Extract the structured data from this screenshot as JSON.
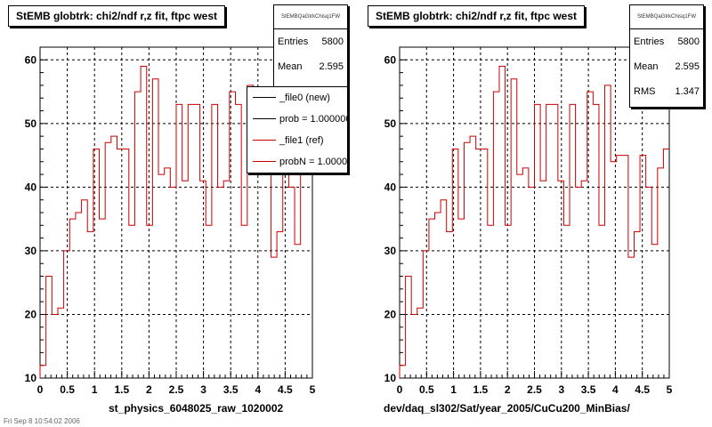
{
  "colors": {
    "hist_line": "#cc0000",
    "axis": "#000000",
    "grid": "#000000",
    "background": "#ffffff"
  },
  "footer": "Fri Sep 8 10:54:02 2006",
  "legend": {
    "items": [
      {
        "label": "_file0 (new)",
        "color": "#000000"
      },
      {
        "label": "prob = 1.000000",
        "color": "#000000"
      },
      {
        "label": "_file1 (ref)",
        "color": "#cc0000"
      },
      {
        "label": "probN = 1.000000",
        "color": "#cc0000"
      }
    ]
  },
  "chart_data": [
    {
      "type": "line",
      "style": "step-histogram",
      "title": "StEMB globtrk: chi2/ndf r,z fit, ftpc west",
      "xlabel": "st_physics_6048025_raw_1020002",
      "ylabel": "",
      "xlim": [
        0,
        5
      ],
      "ylim": [
        10,
        62
      ],
      "grid": true,
      "legend_placement": "top-right",
      "x_ticks": [
        "0",
        "0.5",
        "1",
        "1.5",
        "2",
        "2.5",
        "3",
        "3.5",
        "4",
        "4.5",
        "5"
      ],
      "y_ticks": [
        "10",
        "20",
        "30",
        "40",
        "50",
        "60"
      ],
      "stats": {
        "name": "StEMBQaGtrkChisq1FW",
        "entries_label": "Entries",
        "entries": "5800",
        "mean_label": "Mean",
        "mean": "2.595"
      },
      "series": [
        {
          "name": "_file1 (ref)",
          "color": "#cc0000",
          "values": [
            12,
            26,
            20,
            21,
            30,
            35,
            36,
            38,
            33,
            46,
            35,
            47,
            48,
            46,
            46,
            34,
            55,
            59,
            34,
            57,
            42,
            43,
            40,
            53,
            41,
            53,
            53,
            41,
            34,
            53,
            40,
            41,
            55,
            53,
            34,
            56,
            44,
            45,
            45,
            29,
            33,
            45,
            40,
            31,
            43,
            46
          ]
        }
      ]
    },
    {
      "type": "line",
      "style": "step-histogram",
      "title": "StEMB globtrk: chi2/ndf r,z fit, ftpc west",
      "xlabel": "dev/daq_sl302/Sat/year_2005/CuCu200_MinBias/",
      "ylabel": "",
      "xlim": [
        0,
        5
      ],
      "ylim": [
        10,
        62
      ],
      "grid": true,
      "x_ticks": [
        "0",
        "0.5",
        "1",
        "1.5",
        "2",
        "2.5",
        "3",
        "3.5",
        "4",
        "4.5",
        "5"
      ],
      "y_ticks": [
        "10",
        "20",
        "30",
        "40",
        "50",
        "60"
      ],
      "stats": {
        "name": "StEMBQaGtrkChisq1FW",
        "entries_label": "Entries",
        "entries": "5800",
        "mean_label": "Mean",
        "mean": "2.595",
        "rms_label": "RMS",
        "rms": "1.347"
      },
      "series": [
        {
          "name": "",
          "color": "#cc0000",
          "values": [
            12,
            26,
            20,
            21,
            30,
            35,
            36,
            38,
            33,
            46,
            35,
            47,
            48,
            46,
            46,
            34,
            55,
            59,
            34,
            57,
            42,
            43,
            40,
            53,
            41,
            53,
            53,
            41,
            34,
            53,
            40,
            41,
            55,
            53,
            34,
            56,
            44,
            45,
            45,
            29,
            33,
            45,
            40,
            31,
            43,
            46
          ]
        }
      ]
    }
  ]
}
